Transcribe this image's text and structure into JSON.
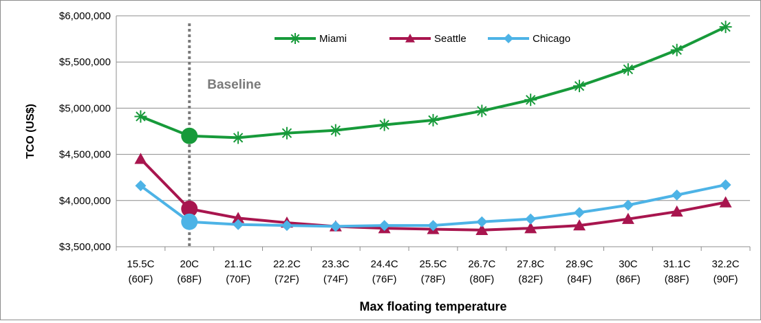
{
  "chart_data": {
    "type": "line",
    "xlabel": "Max floating temperature",
    "ylabel": "TCO (US$)",
    "categories": [
      [
        "15.5C",
        "(60F)"
      ],
      [
        "20C",
        "(68F)"
      ],
      [
        "21.1C",
        "(70F)"
      ],
      [
        "22.2C",
        "(72F)"
      ],
      [
        "23.3C",
        "(74F)"
      ],
      [
        "24.4C",
        "(76F)"
      ],
      [
        "25.5C",
        "(78F)"
      ],
      [
        "26.7C",
        "(80F)"
      ],
      [
        "27.8C",
        "(82F)"
      ],
      [
        "28.9C",
        "(84F)"
      ],
      [
        "30C",
        "(86F)"
      ],
      [
        "31.1C",
        "(88F)"
      ],
      [
        "32.2C",
        "(90F)"
      ]
    ],
    "ylim": [
      3500000,
      6000000
    ],
    "yticks": [
      3500000,
      4000000,
      4500000,
      5000000,
      5500000,
      6000000
    ],
    "ytick_labels": [
      "$3,500,000",
      "$4,000,000",
      "$4,500,000",
      "$5,000,000",
      "$5,500,000",
      "$6,000,000"
    ],
    "grid": true,
    "legend_position": "top-center",
    "series": [
      {
        "name": "Miami",
        "color": "#179a3a",
        "marker": "asterisk",
        "values": [
          4910000,
          4700000,
          4680000,
          4730000,
          4760000,
          4820000,
          4870000,
          4970000,
          5090000,
          5240000,
          5420000,
          5630000,
          5880000
        ]
      },
      {
        "name": "Seattle",
        "color": "#a8154e",
        "marker": "triangle",
        "values": [
          4450000,
          3910000,
          3810000,
          3760000,
          3720000,
          3700000,
          3690000,
          3680000,
          3700000,
          3730000,
          3800000,
          3880000,
          3980000
        ]
      },
      {
        "name": "Chicago",
        "color": "#4db3e6",
        "marker": "diamond",
        "values": [
          4160000,
          3770000,
          3740000,
          3730000,
          3720000,
          3730000,
          3730000,
          3770000,
          3800000,
          3870000,
          3950000,
          4060000,
          4170000
        ]
      }
    ],
    "annotation": {
      "text": "Baseline",
      "category_index": 1
    }
  }
}
